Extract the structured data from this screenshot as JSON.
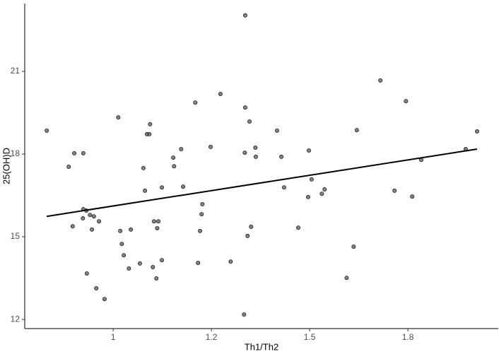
{
  "chart_data": {
    "type": "scatter",
    "x_label": "Th1/Th2",
    "y_label": "25(OH)D",
    "xlim": [
      0.775,
      1.98
    ],
    "ylim": [
      11.67,
      23.46
    ],
    "xticks": [
      1,
      {
        "value": 1.25,
        "label": "1.2"
      },
      1.5,
      {
        "value": 1.75,
        "label": "1.8"
      }
    ],
    "yticks": [
      12,
      15,
      18,
      21
    ],
    "color": "#5a5a5a",
    "x": [
      0.831,
      0.887,
      0.901,
      0.924,
      0.897,
      0.924,
      0.923,
      0.932,
      0.941,
      0.951,
      0.964,
      0.946,
      0.933,
      0.957,
      0.978,
      1.013,
      1.018,
      1.022,
      1.027,
      1.04,
      1.045,
      1.068,
      1.077,
      1.081,
      1.086,
      1.092,
      1.094,
      1.101,
      1.104,
      1.112,
      1.115,
      1.11,
      1.124,
      1.124,
      1.155,
      1.153,
      1.178,
      1.173,
      1.216,
      1.209,
      1.227,
      1.225,
      1.221,
      1.248,
      1.273,
      1.299,
      1.336,
      1.336,
      1.335,
      1.347,
      1.362,
      1.363,
      1.333,
      1.342,
      1.351,
      1.417,
      1.428,
      1.435,
      1.471,
      1.498,
      1.505,
      1.496,
      1.531,
      1.538,
      1.594,
      1.612,
      1.62,
      1.68,
      1.716,
      1.745,
      1.761,
      1.784,
      1.897,
      1.926
    ],
    "values": [
      18.85,
      17.54,
      18.03,
      18.03,
      15.38,
      16.0,
      15.67,
      15.95,
      15.79,
      15.74,
      15.56,
      15.26,
      13.67,
      13.13,
      12.74,
      19.33,
      15.21,
      14.74,
      14.33,
      13.85,
      15.26,
      14.03,
      17.49,
      16.67,
      18.72,
      18.72,
      19.08,
      13.9,
      15.56,
      15.31,
      15.56,
      13.49,
      14.15,
      16.79,
      17.56,
      17.87,
      16.82,
      18.18,
      14.05,
      19.87,
      16.18,
      15.82,
      15.21,
      18.26,
      20.18,
      14.1,
      23.03,
      19.69,
      18.05,
      19.18,
      18.23,
      17.9,
      12.18,
      15.03,
      15.36,
      18.85,
      17.9,
      16.79,
      15.33,
      18.13,
      17.08,
      16.44,
      16.56,
      16.72,
      13.51,
      14.64,
      18.87,
      20.67,
      16.67,
      19.92,
      16.46,
      17.79,
      18.18,
      18.82
    ],
    "fit": {
      "color": "#000000",
      "x": [
        0.831,
        1.926
      ],
      "values": [
        15.74,
        18.18
      ]
    }
  }
}
